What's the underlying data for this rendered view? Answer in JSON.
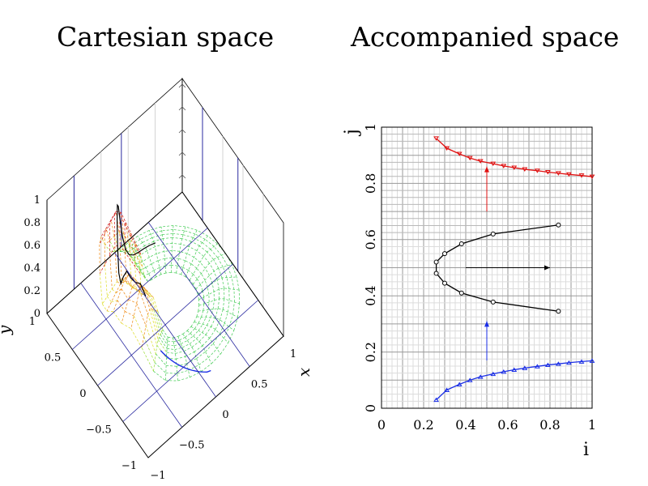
{
  "titles": {
    "left": "Cartesian space",
    "right": "Accompanied space"
  },
  "chart_data": [
    {
      "type": "surface3d",
      "title": "Cartesian space",
      "xlabel": "x",
      "ylabel": "y",
      "zlabel": "",
      "xlim": [
        -1,
        1
      ],
      "ylim": [
        -1,
        1
      ],
      "zlim": [
        0,
        1
      ],
      "x_ticks": [
        "−1",
        "−0.5",
        "0",
        "0.5",
        "1"
      ],
      "y_ticks": [
        "−1",
        "−0.5",
        "0",
        "0.5",
        "1"
      ],
      "z_ticks": [
        "0",
        "0.2",
        "0.4",
        "0.6",
        "0.8",
        "1"
      ],
      "colors": {
        "axes": "#000000",
        "box": "#2a2aa0",
        "low": "#44cc55",
        "mid": "#dddd22",
        "high": "#cc1111",
        "path": "#000000",
        "blue_path": "#1a2ee6"
      }
    },
    {
      "type": "line",
      "title": "Accompanied space",
      "xlabel": "i",
      "ylabel": "j",
      "xlim": [
        0,
        1
      ],
      "ylim": [
        0,
        1
      ],
      "x_ticks": [
        "0",
        "0.2",
        "0.4",
        "0.6",
        "0.8",
        "1"
      ],
      "y_ticks": [
        "0",
        "0.2",
        "0.4",
        "0.6",
        "0.8",
        "1"
      ],
      "grid": true,
      "series": [
        {
          "color": "#e01010",
          "marker": "triangle-down",
          "x": [
            0.26,
            0.31,
            0.37,
            0.42,
            0.47,
            0.53,
            0.58,
            0.63,
            0.68,
            0.74,
            0.79,
            0.84,
            0.89,
            0.95,
            1.0
          ],
          "y": [
            0.96,
            0.925,
            0.905,
            0.89,
            0.879,
            0.87,
            0.862,
            0.856,
            0.85,
            0.845,
            0.84,
            0.836,
            0.832,
            0.828,
            0.824
          ]
        },
        {
          "color": "#000000",
          "marker": "circle",
          "x": [
            0.84,
            0.53,
            0.38,
            0.3,
            0.26,
            0.26,
            0.3,
            0.38,
            0.53,
            0.84
          ],
          "y": [
            0.652,
            0.62,
            0.585,
            0.55,
            0.52,
            0.48,
            0.445,
            0.41,
            0.378,
            0.345
          ]
        },
        {
          "color": "#1a2ee6",
          "marker": "triangle-up",
          "x": [
            0.26,
            0.31,
            0.37,
            0.42,
            0.47,
            0.53,
            0.58,
            0.63,
            0.68,
            0.74,
            0.79,
            0.84,
            0.89,
            0.95,
            1.0
          ],
          "y": [
            0.03,
            0.065,
            0.085,
            0.1,
            0.112,
            0.122,
            0.13,
            0.137,
            0.143,
            0.149,
            0.154,
            0.158,
            0.162,
            0.166,
            0.169
          ]
        }
      ],
      "annotations": [
        {
          "color": "#e01010",
          "from": [
            0.5,
            0.7
          ],
          "to": [
            0.5,
            0.86
          ]
        },
        {
          "color": "#000000",
          "from": [
            0.4,
            0.5
          ],
          "to": [
            0.8,
            0.5
          ]
        },
        {
          "color": "#1a2ee6",
          "from": [
            0.5,
            0.17
          ],
          "to": [
            0.5,
            0.31
          ]
        }
      ]
    }
  ]
}
